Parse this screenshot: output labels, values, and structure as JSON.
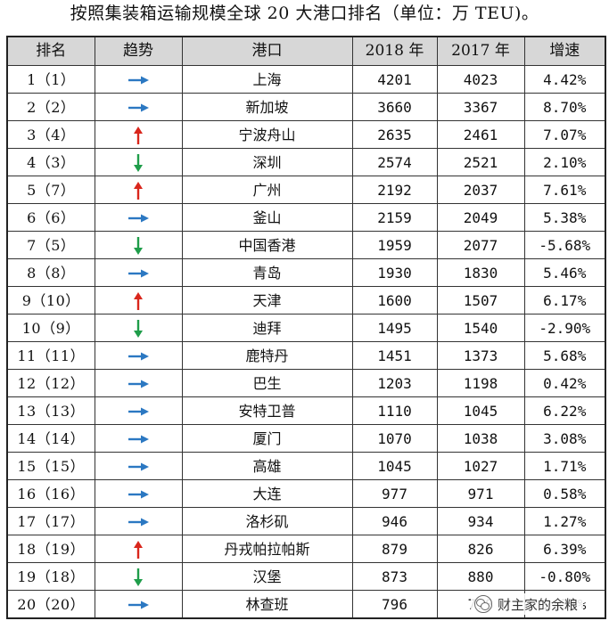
{
  "title": "按照集装箱运输规模全球 20 大港口排名（单位：万 TEU)。",
  "headers": {
    "rank": "排名",
    "trend": "趋势",
    "port": "港口",
    "y2018": "2018 年",
    "y2017": "2017 年",
    "growth": "增速"
  },
  "colors": {
    "flat": "#2b78c2",
    "up": "#d9261c",
    "down": "#1f9d4a"
  },
  "rows": [
    {
      "rank": "1（1）",
      "trend": "flat",
      "port": "上海",
      "y2018": "4201",
      "y2017": "4023",
      "growth": "4.42%"
    },
    {
      "rank": "2（2）",
      "trend": "flat",
      "port": "新加坡",
      "y2018": "3660",
      "y2017": "3367",
      "growth": "8.70%"
    },
    {
      "rank": "3（4）",
      "trend": "up",
      "port": "宁波舟山",
      "y2018": "2635",
      "y2017": "2461",
      "growth": "7.07%"
    },
    {
      "rank": "4（3）",
      "trend": "down",
      "port": "深圳",
      "y2018": "2574",
      "y2017": "2521",
      "growth": "2.10%"
    },
    {
      "rank": "5（7）",
      "trend": "up",
      "port": "广州",
      "y2018": "2192",
      "y2017": "2037",
      "growth": "7.61%"
    },
    {
      "rank": "6（6）",
      "trend": "flat",
      "port": "釜山",
      "y2018": "2159",
      "y2017": "2049",
      "growth": "5.38%"
    },
    {
      "rank": "7（5）",
      "trend": "down",
      "port": "中国香港",
      "y2018": "1959",
      "y2017": "2077",
      "growth": "-5.68%"
    },
    {
      "rank": "8（8）",
      "trend": "flat",
      "port": "青岛",
      "y2018": "1930",
      "y2017": "1830",
      "growth": "5.46%"
    },
    {
      "rank": "9（10）",
      "trend": "up",
      "port": "天津",
      "y2018": "1600",
      "y2017": "1507",
      "growth": "6.17%"
    },
    {
      "rank": "10（9）",
      "trend": "down",
      "port": "迪拜",
      "y2018": "1495",
      "y2017": "1540",
      "growth": "-2.90%"
    },
    {
      "rank": "11（11）",
      "trend": "flat",
      "port": "鹿特丹",
      "y2018": "1451",
      "y2017": "1373",
      "growth": "5.68%"
    },
    {
      "rank": "12（12）",
      "trend": "flat",
      "port": "巴生",
      "y2018": "1203",
      "y2017": "1198",
      "growth": "0.42%"
    },
    {
      "rank": "13（13）",
      "trend": "flat",
      "port": "安特卫普",
      "y2018": "1110",
      "y2017": "1045",
      "growth": "6.22%"
    },
    {
      "rank": "14（14）",
      "trend": "flat",
      "port": "厦门",
      "y2018": "1070",
      "y2017": "1038",
      "growth": "3.08%"
    },
    {
      "rank": "15（15）",
      "trend": "flat",
      "port": "高雄",
      "y2018": "1045",
      "y2017": "1027",
      "growth": "1.71%"
    },
    {
      "rank": "16（16）",
      "trend": "flat",
      "port": "大连",
      "y2018": "977",
      "y2017": "971",
      "growth": "0.58%"
    },
    {
      "rank": "17（17）",
      "trend": "flat",
      "port": "洛杉矶",
      "y2018": "946",
      "y2017": "934",
      "growth": "1.27%"
    },
    {
      "rank": "18（19）",
      "trend": "up",
      "port": "丹戎帕拉帕斯",
      "y2018": "879",
      "y2017": "826",
      "growth": "6.39%"
    },
    {
      "rank": "19（18）",
      "trend": "down",
      "port": "汉堡",
      "y2018": "873",
      "y2017": "880",
      "growth": "-0.80%"
    },
    {
      "rank": "20（20）",
      "trend": "flat",
      "port": "林查班",
      "y2018": "796",
      "y2017": "778",
      "growth": "2.31%"
    }
  ],
  "watermark": {
    "text": "财主家的余粮",
    "icon": "wechat-icon"
  }
}
